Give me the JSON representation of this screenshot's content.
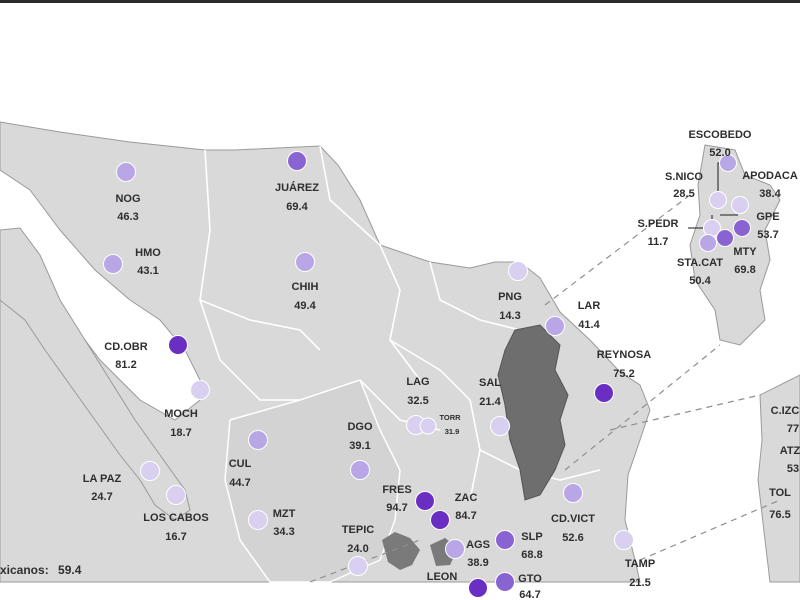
{
  "national": {
    "label": "xicanos:",
    "value": "59.4"
  },
  "colors": {
    "land": "#d9d9d9",
    "coast": "#9a9a9a",
    "border": "#ffffff",
    "dark_region": "#6e6e6e",
    "low": "#d9cff0",
    "mid": "#b9a6e6",
    "high": "#8a63d2",
    "very_high": "#6a2fc2"
  },
  "points": [
    {
      "name": "NOG",
      "value": "46.3",
      "level": "mid"
    },
    {
      "name": "HMO",
      "value": "43.1",
      "level": "mid"
    },
    {
      "name": "JUÁREZ",
      "value": "69.4",
      "level": "high"
    },
    {
      "name": "CHIH",
      "value": "49.4",
      "level": "mid"
    },
    {
      "name": "CD.OBR",
      "value": "81.2",
      "level": "very_high"
    },
    {
      "name": "MOCH",
      "value": "18.7",
      "level": "low"
    },
    {
      "name": "LA PAZ",
      "value": "24.7",
      "level": "low"
    },
    {
      "name": "LOS CABOS",
      "value": "16.7",
      "level": "low"
    },
    {
      "name": "CUL",
      "value": "44.7",
      "level": "mid"
    },
    {
      "name": "MZT",
      "value": "34.3",
      "level": "low"
    },
    {
      "name": "DGO",
      "value": "39.1",
      "level": "mid"
    },
    {
      "name": "LAG",
      "value": "32.5",
      "level": "low"
    },
    {
      "name": "TORR",
      "value": "31.9",
      "level": "low"
    },
    {
      "name": "SAL",
      "value": "21.4",
      "level": "low"
    },
    {
      "name": "PNG",
      "value": "14.3",
      "level": "low"
    },
    {
      "name": "LAR",
      "value": "41.4",
      "level": "mid"
    },
    {
      "name": "REYNOSA",
      "value": "75.2",
      "level": "very_high"
    },
    {
      "name": "FRES",
      "value": "94.7",
      "level": "very_high"
    },
    {
      "name": "ZAC",
      "value": "84.7",
      "level": "very_high"
    },
    {
      "name": "TEPIC",
      "value": "24.0",
      "level": "low"
    },
    {
      "name": "AGS",
      "value": "38.9",
      "level": "mid"
    },
    {
      "name": "SLP",
      "value": "68.8",
      "level": "high"
    },
    {
      "name": "GTO",
      "value": "64.7",
      "level": "high"
    },
    {
      "name": "CD.VICT",
      "value": "52.6",
      "level": "mid"
    },
    {
      "name": "TAMP",
      "value": "21.5",
      "level": "low"
    },
    {
      "name": "LEON",
      "value": "",
      "level": "very_high"
    }
  ],
  "inset_monterrey": [
    {
      "name": "ESCOBEDO",
      "value": "52.0",
      "level": "mid"
    },
    {
      "name": "S.NICO",
      "value": "28.5",
      "level": "low"
    },
    {
      "name": "APODACA",
      "value": "38.4",
      "level": "low"
    },
    {
      "name": "S.PEDR",
      "value": "11.7",
      "level": "low"
    },
    {
      "name": "GPE",
      "value": "53.7",
      "level": "high"
    },
    {
      "name": "MTY",
      "value": "69.8",
      "level": "high"
    },
    {
      "name": "STA.CAT",
      "value": "50.4",
      "level": "mid"
    }
  ],
  "inset_right": [
    {
      "name": "C.IZC",
      "value": "77"
    },
    {
      "name": "ATZ",
      "value": "53"
    },
    {
      "name": "TOL",
      "value": "76.5"
    }
  ]
}
